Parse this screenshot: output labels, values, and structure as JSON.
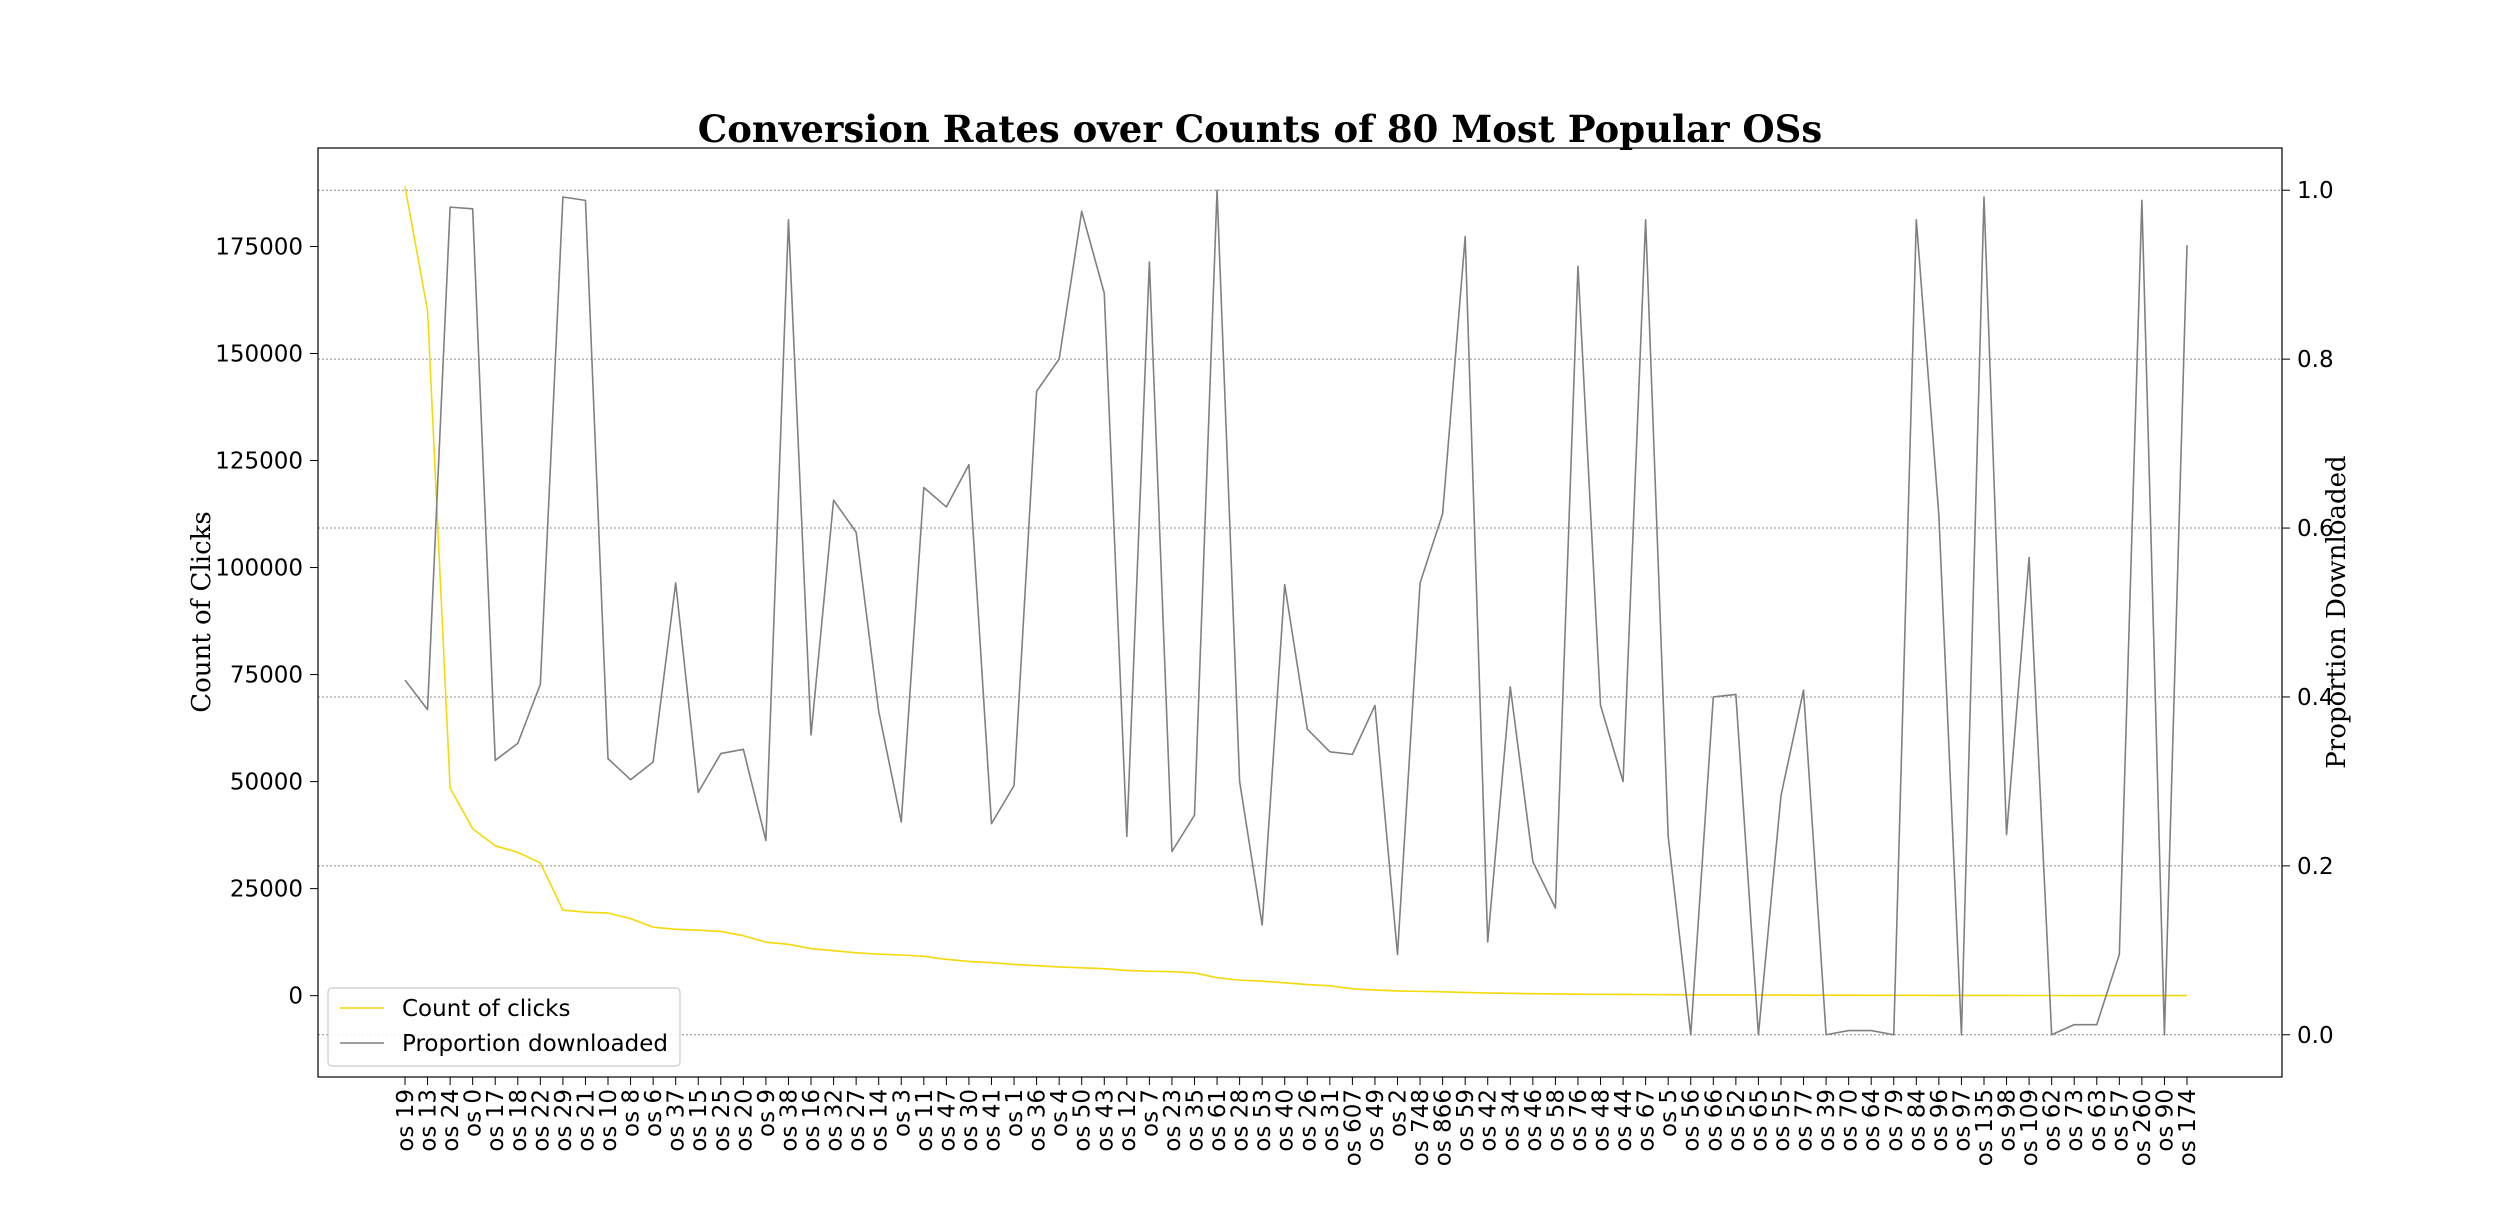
{
  "chart_data": {
    "type": "line",
    "title": "Conversion Rates over Counts of 80 Most Popular OSs",
    "xlabel": "",
    "ylabel": "Count of Clicks",
    "y2label": "Proportion Downloaded",
    "ylim": [
      -19000,
      198000
    ],
    "y2lim": [
      -0.05,
      1.05
    ],
    "yticks": [
      0,
      25000,
      50000,
      75000,
      100000,
      125000,
      150000,
      175000
    ],
    "y2ticks": [
      0.0,
      0.2,
      0.4,
      0.6,
      0.8,
      1.0
    ],
    "y2_tick_labels": [
      "0.0",
      "0.2",
      "0.4",
      "0.6",
      "0.8",
      "1.0"
    ],
    "grid": "horizontal dotted lines on right axis ticks",
    "legend_position": "lower-left",
    "categories": [
      "os 19",
      "os 13",
      "os 24",
      "os 0",
      "os 17",
      "os 18",
      "os 22",
      "os 29",
      "os 21",
      "os 10",
      "os 8",
      "os 6",
      "os 37",
      "os 15",
      "os 25",
      "os 20",
      "os 9",
      "os 38",
      "os 16",
      "os 32",
      "os 27",
      "os 14",
      "os 3",
      "os 11",
      "os 47",
      "os 30",
      "os 41",
      "os 1",
      "os 36",
      "os 4",
      "os 50",
      "os 43",
      "os 12",
      "os 7",
      "os 23",
      "os 35",
      "os 61",
      "os 28",
      "os 53",
      "os 40",
      "os 26",
      "os 31",
      "os 607",
      "os 49",
      "os 2",
      "os 748",
      "os 866",
      "os 59",
      "os 42",
      "os 34",
      "os 46",
      "os 58",
      "os 76",
      "os 48",
      "os 44",
      "os 67",
      "os 5",
      "os 56",
      "os 66",
      "os 52",
      "os 65",
      "os 55",
      "os 77",
      "os 39",
      "os 70",
      "os 64",
      "os 79",
      "os 84",
      "os 96",
      "os 97",
      "os 135",
      "os 98",
      "os 109",
      "os 62",
      "os 73",
      "os 63",
      "os 57",
      "os 260",
      "os 90",
      "os 174"
    ],
    "series": [
      {
        "name": "Count of clicks",
        "axis": "left",
        "color": "#f5d90a",
        "values": [
          189000,
          160000,
          48500,
          39000,
          35000,
          33500,
          31000,
          20000,
          19500,
          19300,
          18000,
          16000,
          15500,
          15300,
          15000,
          14000,
          12500,
          12000,
          11000,
          10500,
          10000,
          9700,
          9500,
          9200,
          8500,
          8000,
          7700,
          7300,
          7000,
          6700,
          6500,
          6300,
          5900,
          5700,
          5600,
          5300,
          4200,
          3600,
          3400,
          3000,
          2600,
          2300,
          1600,
          1300,
          1100,
          1000,
          900,
          750,
          600,
          550,
          450,
          400,
          350,
          300,
          280,
          250,
          220,
          200,
          180,
          160,
          140,
          130,
          120,
          110,
          100,
          90,
          80,
          70,
          60,
          55,
          50,
          45,
          40,
          35,
          30,
          25,
          20,
          18,
          15,
          12
        ]
      },
      {
        "name": "Proportion downloaded",
        "axis": "right",
        "color": "#808080",
        "values": [
          0.42,
          0.385,
          0.98,
          0.978,
          0.325,
          0.345,
          0.415,
          0.992,
          0.988,
          0.327,
          0.302,
          0.323,
          0.535,
          0.287,
          0.333,
          0.338,
          0.23,
          0.965,
          0.355,
          0.633,
          0.595,
          0.383,
          0.252,
          0.648,
          0.625,
          0.675,
          0.25,
          0.295,
          0.762,
          0.8,
          0.975,
          0.878,
          0.235,
          0.915,
          0.217,
          0.26,
          1.0,
          0.3,
          0.13,
          0.533,
          0.362,
          0.335,
          0.332,
          0.39,
          0.095,
          0.535,
          0.617,
          0.945,
          0.11,
          0.412,
          0.205,
          0.15,
          0.91,
          0.39,
          0.3,
          0.965,
          0.235,
          0.0,
          0.4,
          0.403,
          0.0,
          0.283,
          0.408,
          0.0,
          0.005,
          0.005,
          0.0,
          0.965,
          0.615,
          0.0,
          0.992,
          0.237,
          0.565,
          0.0,
          0.012,
          0.012,
          0.095,
          0.988,
          0.0,
          0.935
        ]
      }
    ]
  }
}
